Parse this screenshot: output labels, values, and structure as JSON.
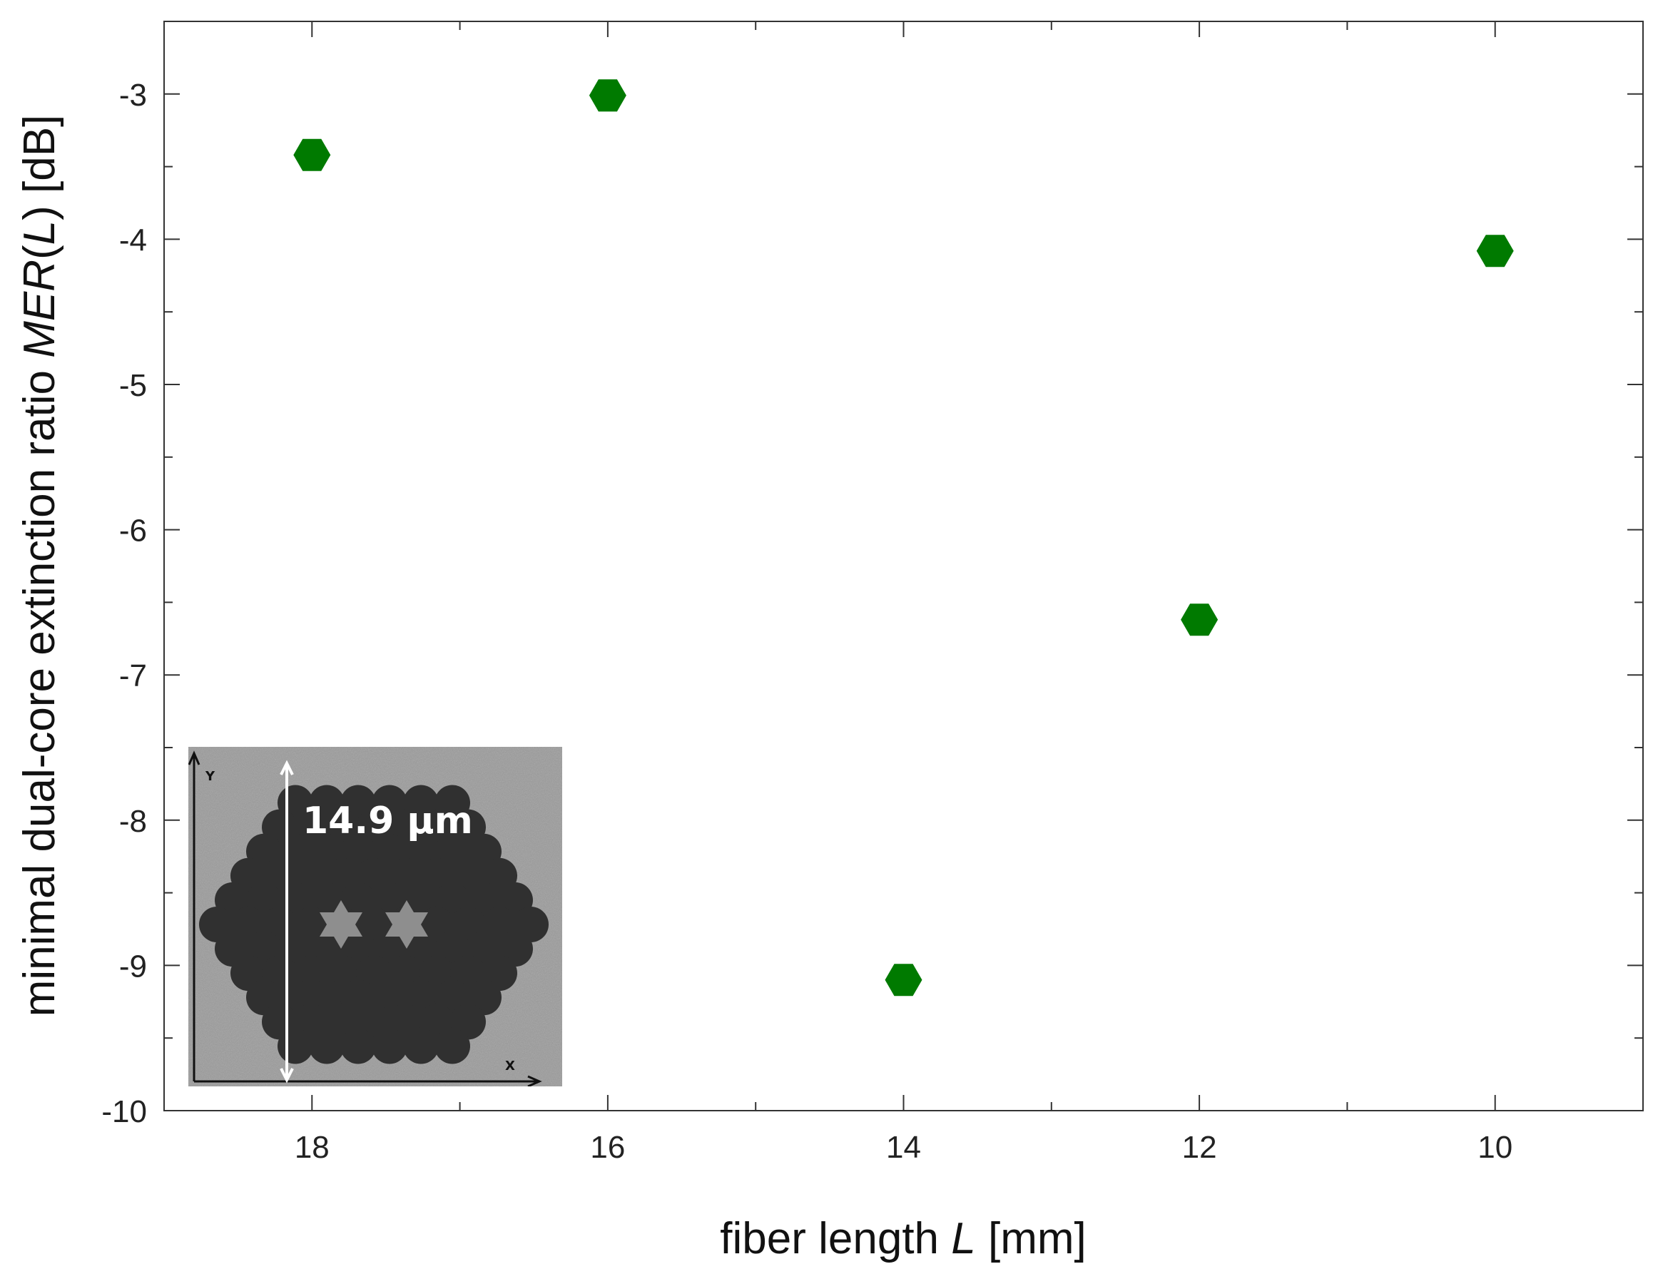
{
  "chart_data": {
    "type": "scatter",
    "xlabel": {
      "prefix": "fiber length ",
      "var": "L",
      "suffix": " [mm]"
    },
    "ylabel": {
      "prefix": "minimal dual-core extinction ratio ",
      "var": "MER",
      "mid": "(",
      "var2": "L",
      "suffix": ") [dB]"
    },
    "x_axis": {
      "reversed": true,
      "xlim": [
        19.0,
        9.0
      ],
      "major_ticks": [
        18,
        16,
        14,
        12,
        10
      ],
      "tick_labels": [
        "18",
        "16",
        "14",
        "12",
        "10"
      ],
      "minor_ticks": [
        19,
        17,
        15,
        13,
        11,
        9
      ]
    },
    "y_axis": {
      "ylim": [
        -10.0,
        -2.5
      ],
      "major_ticks": [
        -3,
        -4,
        -5,
        -6,
        -7,
        -8,
        -9,
        -10
      ],
      "tick_labels": [
        "-3",
        "-4",
        "-5",
        "-6",
        "-7",
        "-8",
        "-9",
        "-10"
      ],
      "minor_ticks": [
        -2.5,
        -3.5,
        -4.5,
        -5.5,
        -6.5,
        -7.5,
        -8.5,
        -9.5
      ]
    },
    "grid": false,
    "marker": "hexagon",
    "marker_color": "#007a00",
    "series": [
      {
        "x": [
          18,
          16,
          14,
          12,
          10
        ],
        "y": [
          -3.42,
          -3.01,
          -9.1,
          -6.62,
          -4.08
        ]
      }
    ],
    "inset": {
      "kind": "fiber cross-section micrograph",
      "label": "14.9 µm",
      "axis_x": "X",
      "axis_y": "Y"
    }
  }
}
